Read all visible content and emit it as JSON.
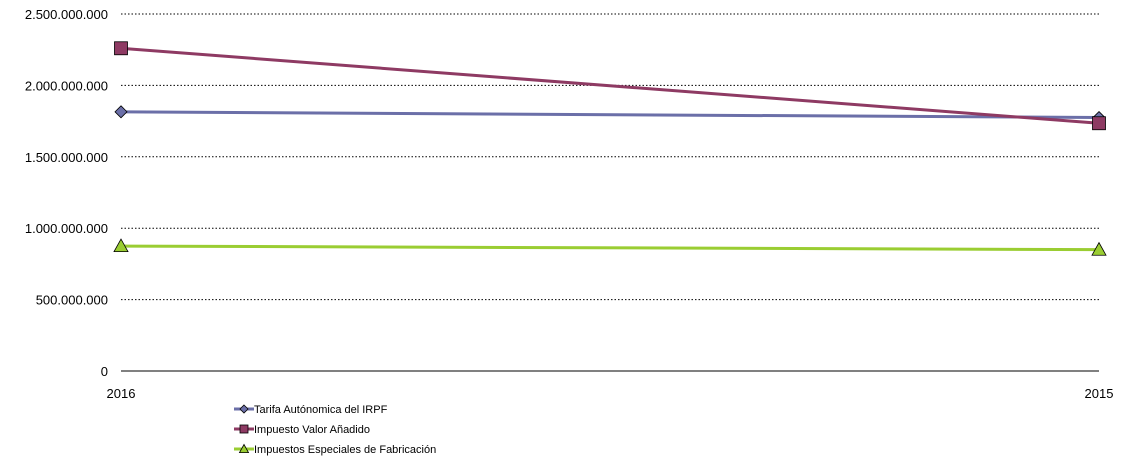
{
  "chart_data": {
    "type": "line",
    "title": "",
    "xlabel": "",
    "ylabel": "",
    "categories": [
      "2016",
      "2015"
    ],
    "yticks": [
      0,
      500000000,
      1000000000,
      1500000000,
      2000000000,
      2500000000
    ],
    "ytick_labels": [
      "0",
      "500.000.000",
      "1.000.000.000",
      "1.500.000.000",
      "2.000.000.000",
      "2.500.000.000"
    ],
    "ylim": [
      0,
      2500000000
    ],
    "grid": "horizontal dotted",
    "legend_position": "bottom-left",
    "series": [
      {
        "name": "Tarifa Autónomica del IRPF",
        "values": [
          1815000000,
          1775000000
        ],
        "color": "#6B6FA8",
        "marker": "diamond"
      },
      {
        "name": "Impuesto Valor Añadido",
        "values": [
          2260000000,
          1735000000
        ],
        "color": "#8E3A63",
        "marker": "square"
      },
      {
        "name": "Impuestos Especiales de Fabricación",
        "values": [
          875000000,
          850000000
        ],
        "color": "#9ACD32",
        "marker": "triangle"
      }
    ]
  }
}
